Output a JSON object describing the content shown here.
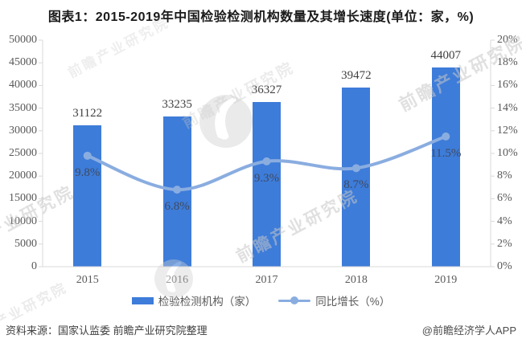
{
  "title": "图表1：2015-2019年中国检验检测机构数量及其增长速度(单位：家，%)",
  "chart_data": {
    "type": "bar+line combo",
    "categories": [
      "2015",
      "2016",
      "2017",
      "2018",
      "2019"
    ],
    "series": [
      {
        "name": "检验检测机构（家）",
        "type": "bar",
        "axis": "left",
        "values": [
          31122,
          33235,
          36327,
          39472,
          44007
        ],
        "color": "#3d7cd9"
      },
      {
        "name": "同比增长（%）",
        "type": "line",
        "axis": "right",
        "values": [
          9.8,
          6.8,
          9.3,
          8.7,
          11.5
        ],
        "value_labels": [
          "9.8%",
          "6.8%",
          "9.3%",
          "8.7%",
          "11.5%"
        ],
        "color": "#8aade0"
      }
    ],
    "left_axis": {
      "min": 0,
      "max": 50000,
      "step": 5000,
      "tick_labels": [
        "50000",
        "45000",
        "40000",
        "35000",
        "30000",
        "25000",
        "20000",
        "15000",
        "10000",
        "5000",
        "0"
      ]
    },
    "right_axis": {
      "min": 0,
      "max": 20,
      "step": 2,
      "tick_labels": [
        "20%",
        "18%",
        "16%",
        "14%",
        "12%",
        "10%",
        "8%",
        "6%",
        "4%",
        "2%",
        "0%"
      ]
    },
    "grid": false,
    "legend_position": "bottom"
  },
  "footer": {
    "source": "资料来源：国家认监委 前瞻产业研究院整理",
    "handle": "@前瞻经济学人APP"
  },
  "watermark": {
    "text": "前瞻产业研究院"
  },
  "colors": {
    "bar": "#3d7cd9",
    "line": "#8aade0",
    "title_text": "#1a1a1a",
    "bar_value_text": "#404040",
    "percent_text": "#3f4a61",
    "axis_text": "#595959",
    "axis_line": "#d9d9d9",
    "watermark": "#c8c8c8"
  }
}
